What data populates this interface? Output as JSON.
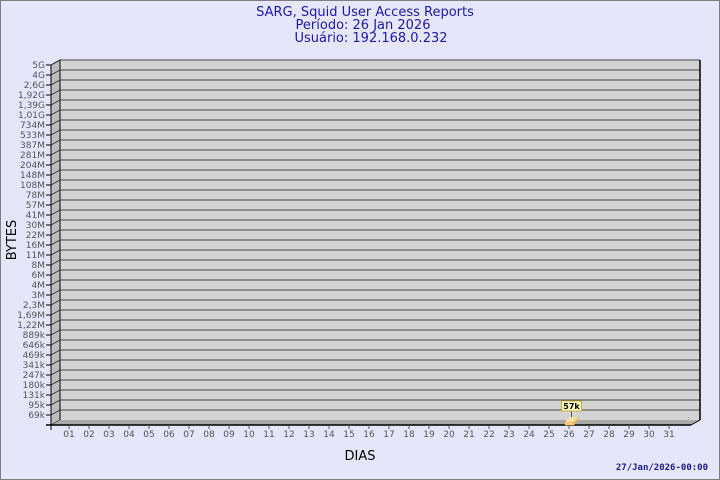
{
  "chart_data": {
    "type": "bar",
    "title": "SARG, Squid User Access Reports",
    "subtitle_lines": [
      "Período: 26 Jan 2026",
      "Usuário: 192.168.0.232"
    ],
    "xlabel": "DIAS",
    "ylabel": "BYTES",
    "categories": [
      "01",
      "02",
      "03",
      "04",
      "05",
      "06",
      "07",
      "08",
      "09",
      "10",
      "11",
      "12",
      "13",
      "14",
      "15",
      "16",
      "17",
      "18",
      "19",
      "20",
      "21",
      "22",
      "23",
      "24",
      "25",
      "26",
      "27",
      "28",
      "29",
      "30",
      "31"
    ],
    "y_tick_labels": [
      "5G",
      "4G",
      "2,6G",
      "1,92G",
      "1,39G",
      "1,01G",
      "734M",
      "533M",
      "387M",
      "281M",
      "204M",
      "148M",
      "108M",
      "78M",
      "57M",
      "41M",
      "30M",
      "22M",
      "16M",
      "11M",
      "8M",
      "6M",
      "4M",
      "3M",
      "2,3M",
      "1,69M",
      "1,22M",
      "889k",
      "646k",
      "469k",
      "341k",
      "247k",
      "180k",
      "131k",
      "95k",
      "69k"
    ],
    "y_scale": "log",
    "grid": true,
    "series": [
      {
        "values": [
          null,
          null,
          null,
          null,
          null,
          null,
          null,
          null,
          null,
          null,
          null,
          null,
          null,
          null,
          null,
          null,
          null,
          null,
          null,
          null,
          null,
          null,
          null,
          null,
          null,
          57000,
          null,
          null,
          null,
          null,
          null
        ],
        "data_labels": {
          "26": "57k"
        }
      }
    ],
    "colors": {
      "background": "#e6e6fa",
      "plot": "#d3d3d3",
      "bar": "#ffd27f",
      "label_bg": "#ffffc0",
      "title": "#1a1aa6"
    }
  },
  "footer": {
    "timestamp": "27/Jan/2026-00:00"
  }
}
